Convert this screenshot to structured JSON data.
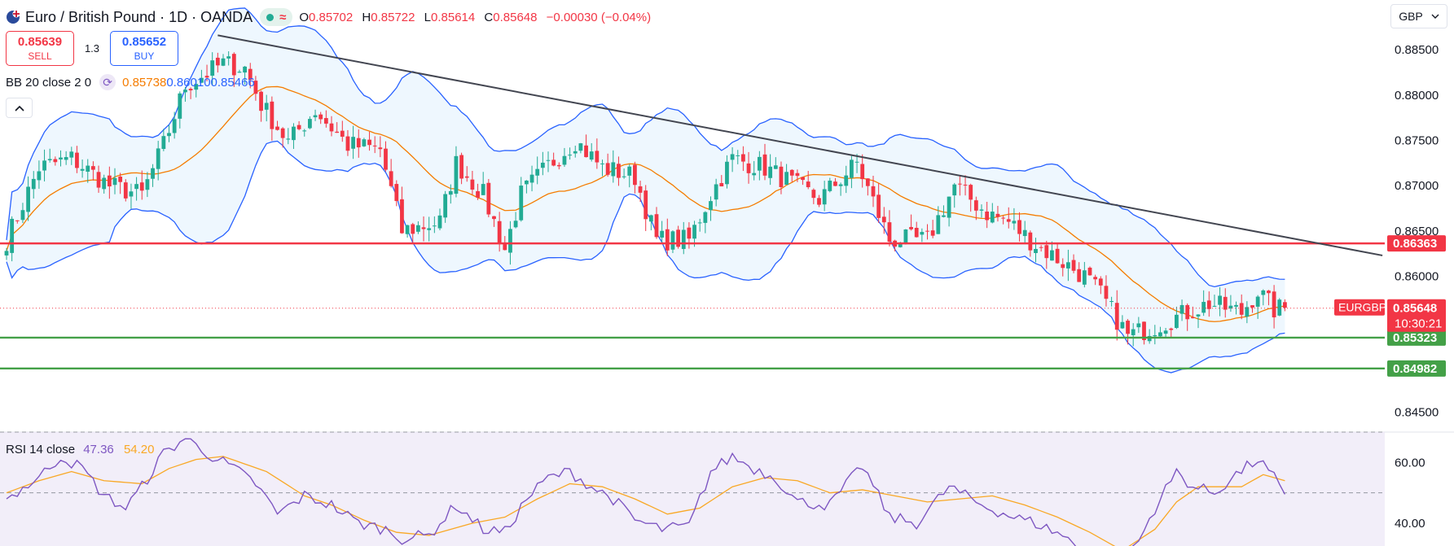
{
  "header": {
    "title": "Euro / British Pound · 1D · OANDA",
    "ohlc": [
      {
        "key": "O",
        "value": "0.85702"
      },
      {
        "key": "H",
        "value": "0.85722"
      },
      {
        "key": "L",
        "value": "0.85614"
      },
      {
        "key": "C",
        "value": "0.85648"
      }
    ],
    "change": "−0.00030 (−0.04%)"
  },
  "trade": {
    "sell_price": "0.85639",
    "sell_label": "SELL",
    "spread": "1.3",
    "buy_price": "0.85652",
    "buy_label": "BUY"
  },
  "bb_legend": {
    "name": "BB 20 close 2 0",
    "basis": "0.85738",
    "upper": "0.86010",
    "lower": "0.85466"
  },
  "rsi_legend": {
    "name": "RSI 14 close",
    "rsi": "47.36",
    "ma": "54.20"
  },
  "currency": {
    "label": "GBP",
    "chevron": "chevron-down-icon"
  },
  "colors": {
    "up": "#22ab94",
    "down": "#f23645",
    "bb_band": "#2962ff",
    "bb_basis": "#f57c00",
    "bb_fill": "#e3f2fd",
    "rsi": "#7e57c2",
    "rsi_ma": "#f9a825",
    "rsi_bg": "#ede7f6",
    "resistance": "#f23645",
    "support": "#43a047",
    "trendline": "#434651"
  },
  "chart_data": {
    "type": "candlestick",
    "symbol_tag": "EURGBP",
    "last_price": "0.85648",
    "countdown": "10:30:21",
    "y_ticks": [
      "0.88500",
      "0.88000",
      "0.87500",
      "0.87000",
      "0.86500",
      "0.86000",
      "0.85500",
      "0.85000",
      "0.84500"
    ],
    "y_tick_values": [
      0.885,
      0.88,
      0.875,
      0.87,
      0.865,
      0.86,
      0.855,
      0.85,
      0.845
    ],
    "ylim": [
      0.8428,
      0.8905
    ],
    "candle_count": 237,
    "levels": [
      {
        "label": "0.86363",
        "value": 0.86363,
        "kind": "resistance"
      },
      {
        "label": "0.85323",
        "value": 0.85323,
        "kind": "support"
      },
      {
        "label": "0.84982",
        "value": 0.84982,
        "kind": "support"
      }
    ],
    "trendline": {
      "start": {
        "index": 39,
        "value": 0.8866
      },
      "end": {
        "index": 254,
        "value": 0.8623
      }
    },
    "close_path": [
      [
        0,
        0.864
      ],
      [
        6,
        0.872
      ],
      [
        12,
        0.873
      ],
      [
        19,
        0.87
      ],
      [
        25,
        0.869
      ],
      [
        29,
        0.8745
      ],
      [
        33,
        0.881
      ],
      [
        40,
        0.8835
      ],
      [
        44,
        0.883
      ],
      [
        47,
        0.879
      ],
      [
        52,
        0.8748
      ],
      [
        57,
        0.8783
      ],
      [
        63,
        0.8745
      ],
      [
        69,
        0.874
      ],
      [
        73,
        0.865
      ],
      [
        80,
        0.866
      ],
      [
        83,
        0.8725
      ],
      [
        88,
        0.869
      ],
      [
        92,
        0.863
      ],
      [
        95,
        0.869
      ],
      [
        100,
        0.8722
      ],
      [
        105,
        0.875
      ],
      [
        110,
        0.872
      ],
      [
        116,
        0.871
      ],
      [
        120,
        0.864
      ],
      [
        126,
        0.864
      ],
      [
        130,
        0.869
      ],
      [
        134,
        0.873
      ],
      [
        140,
        0.872
      ],
      [
        150,
        0.8685
      ],
      [
        157,
        0.8725
      ],
      [
        163,
        0.864
      ],
      [
        170,
        0.864
      ],
      [
        175,
        0.87
      ],
      [
        181,
        0.867
      ],
      [
        185,
        0.866
      ],
      [
        190,
        0.8635
      ],
      [
        199,
        0.86
      ],
      [
        202,
        0.858
      ],
      [
        207,
        0.8534
      ],
      [
        212,
        0.8545
      ],
      [
        218,
        0.856
      ],
      [
        222,
        0.857
      ],
      [
        228,
        0.856
      ],
      [
        231,
        0.8584
      ],
      [
        234,
        0.8563
      ],
      [
        236,
        0.8565
      ]
    ],
    "rsi": {
      "y_ticks": [
        "60.00",
        "40.00"
      ],
      "y_tick_values": [
        60,
        40
      ],
      "ylim": [
        32.5,
        70
      ],
      "overbought": 70,
      "mid": 50,
      "oversold": 30,
      "rsi_path": [
        [
          0,
          48
        ],
        [
          6,
          55
        ],
        [
          10,
          62
        ],
        [
          14,
          58
        ],
        [
          18,
          49
        ],
        [
          22,
          45
        ],
        [
          25,
          52
        ],
        [
          29,
          63
        ],
        [
          33,
          68
        ],
        [
          38,
          62
        ],
        [
          42,
          58
        ],
        [
          46,
          53
        ],
        [
          50,
          43
        ],
        [
          55,
          49
        ],
        [
          60,
          46
        ],
        [
          65,
          40
        ],
        [
          70,
          38
        ],
        [
          73,
          35
        ],
        [
          78,
          36
        ],
        [
          83,
          46
        ],
        [
          88,
          38
        ],
        [
          92,
          37
        ],
        [
          96,
          48
        ],
        [
          100,
          55
        ],
        [
          104,
          57
        ],
        [
          108,
          52
        ],
        [
          112,
          48
        ],
        [
          116,
          41
        ],
        [
          121,
          38
        ],
        [
          126,
          39
        ],
        [
          130,
          57
        ],
        [
          134,
          62
        ],
        [
          138,
          58
        ],
        [
          142,
          55
        ],
        [
          146,
          47
        ],
        [
          152,
          46
        ],
        [
          158,
          59
        ],
        [
          163,
          42
        ],
        [
          168,
          40
        ],
        [
          174,
          52
        ],
        [
          180,
          46
        ],
        [
          186,
          42
        ],
        [
          190,
          40
        ],
        [
          195,
          36
        ],
        [
          200,
          29
        ],
        [
          205,
          27
        ],
        [
          209,
          34
        ],
        [
          212,
          45
        ],
        [
          216,
          57
        ],
        [
          219,
          52
        ],
        [
          223,
          50
        ],
        [
          227,
          56
        ],
        [
          231,
          61
        ],
        [
          234,
          55
        ],
        [
          236,
          48
        ]
      ],
      "ma_path": [
        [
          0,
          50
        ],
        [
          6,
          54
        ],
        [
          12,
          57
        ],
        [
          18,
          54
        ],
        [
          25,
          53
        ],
        [
          30,
          58
        ],
        [
          35,
          61
        ],
        [
          40,
          62
        ],
        [
          48,
          57
        ],
        [
          55,
          49
        ],
        [
          60,
          46
        ],
        [
          66,
          41
        ],
        [
          72,
          37
        ],
        [
          78,
          36
        ],
        [
          86,
          40
        ],
        [
          92,
          42
        ],
        [
          98,
          48
        ],
        [
          104,
          53
        ],
        [
          110,
          52
        ],
        [
          116,
          48
        ],
        [
          122,
          43
        ],
        [
          128,
          45
        ],
        [
          134,
          52
        ],
        [
          140,
          55
        ],
        [
          146,
          54
        ],
        [
          152,
          50
        ],
        [
          158,
          51
        ],
        [
          164,
          49
        ],
        [
          170,
          47
        ],
        [
          176,
          48
        ],
        [
          182,
          49
        ],
        [
          188,
          46
        ],
        [
          194,
          42
        ],
        [
          200,
          37
        ],
        [
          206,
          31
        ],
        [
          212,
          38
        ],
        [
          216,
          47
        ],
        [
          220,
          52
        ],
        [
          224,
          52
        ],
        [
          228,
          52
        ],
        [
          232,
          56
        ],
        [
          236,
          54
        ]
      ]
    }
  }
}
